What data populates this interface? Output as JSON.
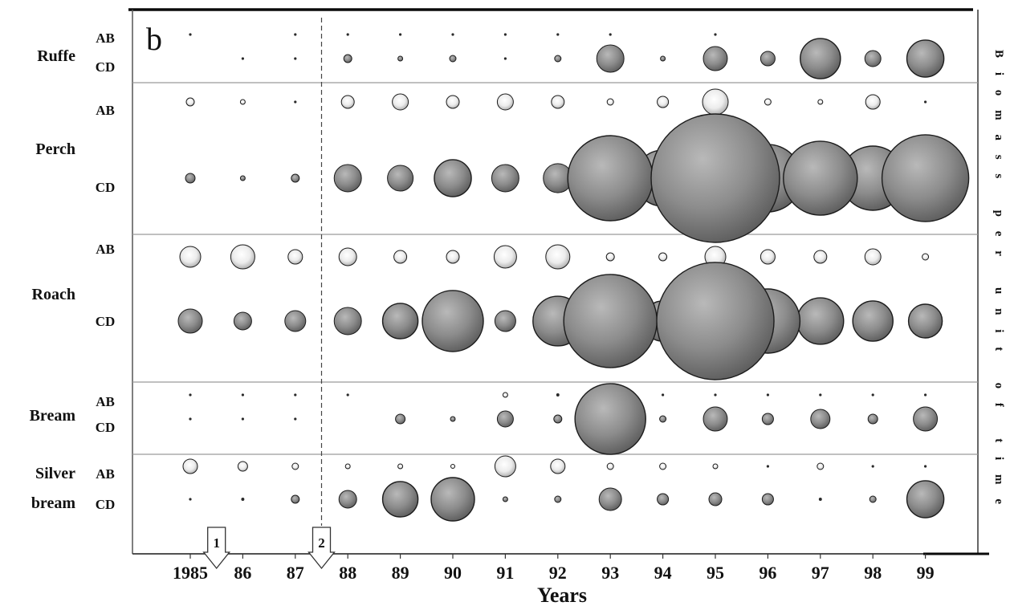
{
  "chart_data": {
    "type": "scatter",
    "panel_label": "b",
    "xlabel": "Years",
    "size_label": "Biomass per unit of time",
    "x": [
      1985,
      1986,
      1987,
      1988,
      1989,
      1990,
      1991,
      1992,
      1993,
      1994,
      1995,
      1996,
      1997,
      1998,
      1999
    ],
    "tick_labels": [
      "1985",
      "86",
      "87",
      "88",
      "89",
      "90",
      "91",
      "92",
      "93",
      "94",
      "95",
      "96",
      "97",
      "98",
      "99"
    ],
    "grid": false,
    "divider_x": 1987.5,
    "annotations": [
      {
        "label": "1",
        "x": 1985.5
      },
      {
        "label": "2",
        "x": 1987.5
      }
    ],
    "colors": {
      "ab_fill": "#ececec",
      "cd_fill": "#8c8c8c"
    },
    "rows": [
      {
        "species": "Ruffe",
        "groups": [
          {
            "label": "AB",
            "values": [
              0.04,
              0,
              0.04,
              0.04,
              0.04,
              0.04,
              0.04,
              0.04,
              0.04,
              0,
              0.04,
              0,
              0,
              0,
              0
            ]
          },
          {
            "label": "CD",
            "values": [
              0,
              0.04,
              0.04,
              0.39,
              0.14,
              0.25,
              0.04,
              0.25,
              4.5,
              0.14,
              3.5,
              1.27,
              9.8,
              1.56,
              8.3
            ]
          }
        ]
      },
      {
        "species": "Perch",
        "groups": [
          {
            "label": "AB",
            "values": [
              0.39,
              0.14,
              0.04,
              1.0,
              1.56,
              1.0,
              1.56,
              1.0,
              0.25,
              0.77,
              4.0,
              0.25,
              0.14,
              1.27,
              0.04
            ]
          },
          {
            "label": "CD",
            "values": [
              0.56,
              0.14,
              0.39,
              4.5,
              4.0,
              8.3,
              4.5,
              5.1,
              43.9,
              19.1,
              100,
              27.6,
              33.1,
              25.0,
              45.6
            ]
          }
        ]
      },
      {
        "species": "Roach",
        "groups": [
          {
            "label": "AB",
            "values": [
              2.64,
              3.52,
              1.27,
              1.89,
              1.0,
              1.0,
              3.06,
              3.52,
              0.39,
              0.39,
              2.64,
              1.27,
              1.0,
              1.56,
              0.25
            ]
          },
          {
            "label": "CD",
            "values": [
              3.52,
              1.89,
              2.64,
              4.5,
              7.6,
              22.6,
              2.64,
              15.0,
              52.6,
              9.8,
              83.3,
              25.0,
              13.1,
              9.8,
              6.9
            ]
          }
        ]
      },
      {
        "species": "Bream",
        "groups": [
          {
            "label": "AB",
            "values": [
              0.04,
              0.04,
              0.04,
              0.04,
              0,
              0,
              0.14,
              0.06,
              0,
              0.04,
              0.04,
              0.04,
              0.04,
              0.04,
              0.04
            ]
          },
          {
            "label": "CD",
            "values": [
              0.04,
              0.04,
              0.04,
              0,
              0.56,
              0.14,
              1.56,
              0.39,
              30.3,
              0.25,
              3.5,
              0.77,
              2.25,
              0.56,
              3.5
            ]
          }
        ]
      },
      {
        "species": "Silver bream",
        "groups": [
          {
            "label": "AB",
            "values": [
              1.27,
              0.56,
              0.25,
              0.14,
              0.14,
              0.1,
              2.64,
              1.27,
              0.25,
              0.25,
              0.14,
              0.04,
              0.25,
              0.04,
              0.04
            ]
          },
          {
            "label": "CD",
            "values": [
              0.04,
              0.06,
              0.39,
              1.89,
              7.6,
              11.4,
              0.14,
              0.25,
              3.06,
              0.77,
              1.0,
              0.77,
              0.06,
              0.25,
              8.3
            ]
          }
        ]
      }
    ]
  }
}
